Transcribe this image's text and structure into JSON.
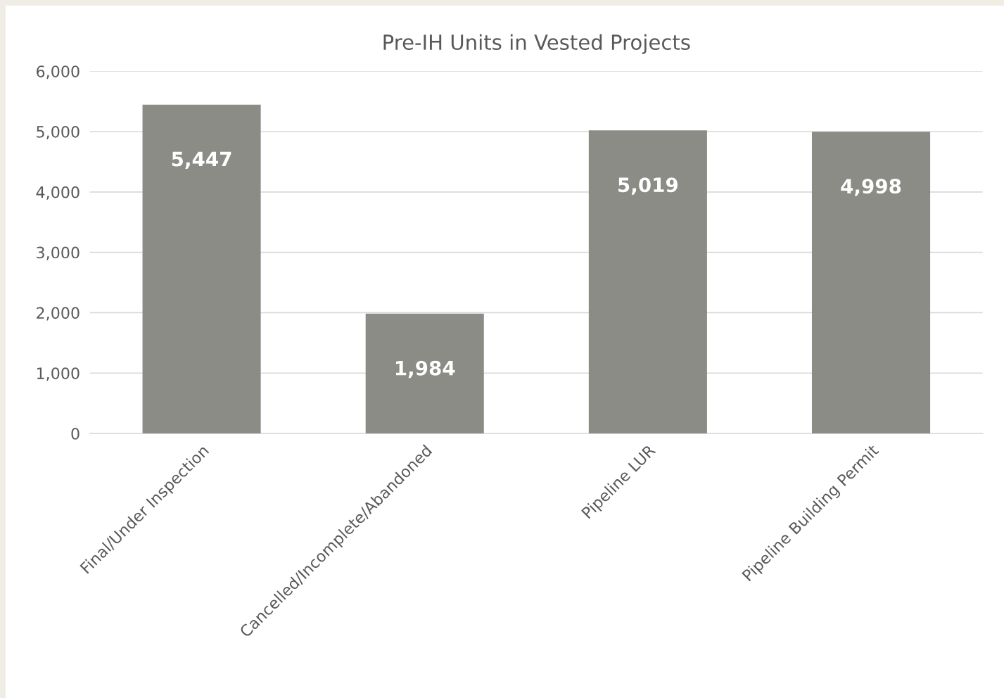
{
  "chart_data": {
    "type": "bar",
    "title": "Pre-IH Units in Vested Projects",
    "categories": [
      "Final/Under Inspection",
      "Cancelled/Incomplete/Abandoned",
      "Pipeline LUR",
      "Pipeline Building Permit"
    ],
    "values": [
      5447,
      1984,
      5019,
      4998
    ],
    "color": "#8c8c86",
    "ylim": [
      0,
      6000
    ],
    "yticks": [
      {
        "value": 0,
        "label": "0"
      },
      {
        "value": 1000,
        "label": "1,000"
      },
      {
        "value": 2000,
        "label": "2,000"
      },
      {
        "value": 3000,
        "label": "3,000"
      },
      {
        "value": 4000,
        "label": "4,000"
      },
      {
        "value": 5000,
        "label": "5,000"
      },
      {
        "value": 6000,
        "label": "6,000"
      }
    ],
    "grid": "y",
    "value_labels": [
      "5,447",
      "1,984",
      "5,019",
      "4,998"
    ]
  }
}
